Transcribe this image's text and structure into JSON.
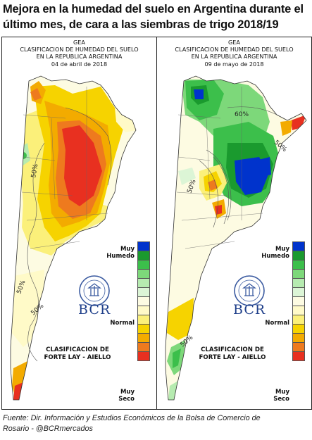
{
  "headline": {
    "line1": "Mejora en la humedad del suelo en Argentina durante el",
    "line2": "último mes, de cara a las siembras de trigo 2018/19"
  },
  "panels": [
    {
      "org": "GEA",
      "title1": "CLASIFICACION DE HUMEDAD DEL SUELO",
      "title2": "EN LA REPUBLICA ARGENTINA",
      "date": "04 de abril de 2018",
      "contour_labels": [
        "50%",
        "50%",
        "50%"
      ]
    },
    {
      "org": "GEA",
      "title1": "CLASIFICACION DE HUMEDAD DEL SUELO",
      "title2": "EN LA REPUBLICA ARGENTINA",
      "date": "09 de mayo de 2018",
      "contour_labels": [
        "60%",
        "50%",
        "50%",
        "50%"
      ]
    }
  ],
  "legend": {
    "label_wet_1": "Muy",
    "label_wet_2": "Humedo",
    "label_normal": "Normal",
    "label_dry_1": "Muy",
    "label_dry_2": "Seco",
    "colors": [
      "#0033cc",
      "#1a9a2e",
      "#3cbf4b",
      "#7dd87a",
      "#b6ebb0",
      "#dcf5d6",
      "#fdfbe2",
      "#fffac8",
      "#fbf07a",
      "#f6d300",
      "#f3ab00",
      "#ee7a1e",
      "#e83020"
    ]
  },
  "logo": {
    "brand": "BCR"
  },
  "classification": {
    "line1": "CLASIFICACION DE",
    "line2": "FORTE LAY - AIELLO"
  },
  "source": {
    "line1": "Fuente: Dir. Información y Estudios Económicos de la Bolsa de Comercio de",
    "line2": "Rosario - @BCRmercados"
  }
}
